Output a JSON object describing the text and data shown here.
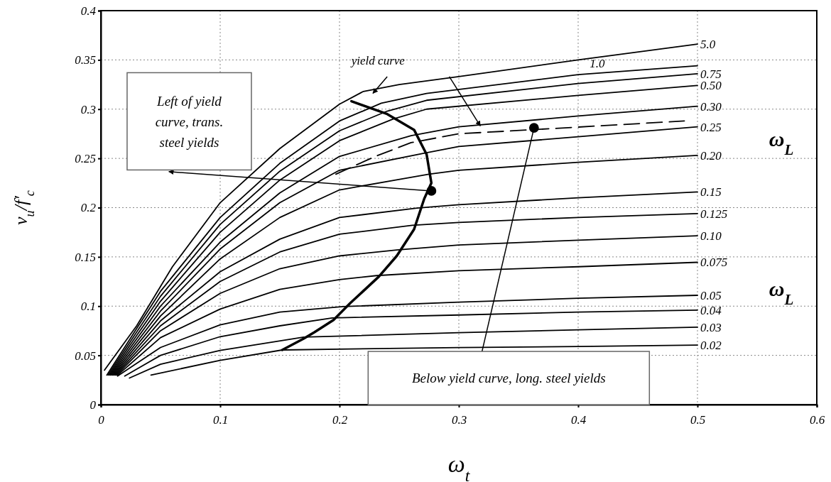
{
  "chart_data": {
    "type": "line",
    "xlabel": "ω$_{t}$",
    "ylabel": "v$_{u}$/f′$_{c}$",
    "xlim": [
      0,
      0.6
    ],
    "xticks": [
      0,
      0.1,
      0.2,
      0.3,
      0.4,
      0.5,
      0.6
    ],
    "ylim": [
      0,
      0.4
    ],
    "yticks": [
      0,
      0.05,
      0.1,
      0.15,
      0.2,
      0.25,
      0.3,
      0.35,
      0.4
    ],
    "grid": true,
    "marker": "none",
    "line_style": "solid",
    "annotations": [
      "yield curve",
      "Left of yield curve, trans. steel yields",
      "Below yield curve, long. steel yields",
      "ω$_{L}$",
      "ω$_{L}$"
    ],
    "series": [
      {
        "name": "5.0",
        "color": "#000000",
        "x": [
          0.003,
          0.03,
          0.06,
          0.1,
          0.15,
          0.2,
          0.22,
          0.25,
          0.3,
          0.4,
          0.5
        ],
        "values": [
          0.035,
          0.08,
          0.14,
          0.205,
          0.26,
          0.305,
          0.318,
          0.325,
          0.333,
          0.35,
          0.366
        ]
      },
      {
        "name": "1.0",
        "color": "#000000",
        "x": [
          0.005,
          0.05,
          0.1,
          0.15,
          0.2,
          0.235,
          0.273,
          0.4,
          0.5
        ],
        "values": [
          0.03,
          0.115,
          0.19,
          0.245,
          0.288,
          0.306,
          0.316,
          0.335,
          0.344
        ]
      },
      {
        "name": "0.75",
        "color": "#000000",
        "x": [
          0.006,
          0.05,
          0.1,
          0.15,
          0.2,
          0.24,
          0.273,
          0.4,
          0.5
        ],
        "values": [
          0.03,
          0.11,
          0.183,
          0.237,
          0.278,
          0.298,
          0.309,
          0.326,
          0.336
        ]
      },
      {
        "name": "0.50",
        "color": "#000000",
        "x": [
          0.007,
          0.05,
          0.1,
          0.15,
          0.2,
          0.245,
          0.273,
          0.4,
          0.5
        ],
        "values": [
          0.03,
          0.105,
          0.175,
          0.228,
          0.268,
          0.29,
          0.3,
          0.314,
          0.324
        ]
      },
      {
        "name": "0.30",
        "color": "#000000",
        "x": [
          0.008,
          0.05,
          0.1,
          0.15,
          0.2,
          0.26,
          0.3,
          0.4,
          0.5
        ],
        "values": [
          0.03,
          0.1,
          0.165,
          0.215,
          0.252,
          0.273,
          0.282,
          0.293,
          0.303
        ]
      },
      {
        "name": "0.25",
        "color": "#000000",
        "x": [
          0.009,
          0.05,
          0.1,
          0.15,
          0.2,
          0.27,
          0.3,
          0.4,
          0.5
        ],
        "values": [
          0.03,
          0.095,
          0.158,
          0.205,
          0.238,
          0.255,
          0.262,
          0.272,
          0.282
        ]
      },
      {
        "name": "0.20",
        "color": "#000000",
        "x": [
          0.01,
          0.05,
          0.1,
          0.15,
          0.2,
          0.275,
          0.3,
          0.4,
          0.5
        ],
        "values": [
          0.03,
          0.09,
          0.148,
          0.19,
          0.218,
          0.234,
          0.238,
          0.246,
          0.253
        ]
      },
      {
        "name": "0.15",
        "color": "#000000",
        "x": [
          0.011,
          0.05,
          0.1,
          0.15,
          0.2,
          0.265,
          0.3,
          0.4,
          0.5
        ],
        "values": [
          0.03,
          0.085,
          0.135,
          0.168,
          0.19,
          0.1995,
          0.203,
          0.21,
          0.216
        ]
      },
      {
        "name": "0.125",
        "color": "#000000",
        "x": [
          0.012,
          0.05,
          0.1,
          0.15,
          0.2,
          0.261,
          0.3,
          0.4,
          0.5
        ],
        "values": [
          0.03,
          0.08,
          0.125,
          0.155,
          0.173,
          0.182,
          0.185,
          0.19,
          0.194
        ]
      },
      {
        "name": "0.10",
        "color": "#000000",
        "x": [
          0.013,
          0.05,
          0.1,
          0.15,
          0.2,
          0.248,
          0.3,
          0.4,
          0.5
        ],
        "values": [
          0.03,
          0.075,
          0.113,
          0.138,
          0.151,
          0.157,
          0.162,
          0.167,
          0.1715
        ]
      },
      {
        "name": "0.075",
        "color": "#000000",
        "x": [
          0.014,
          0.05,
          0.1,
          0.15,
          0.2,
          0.231,
          0.3,
          0.4,
          0.5
        ],
        "values": [
          0.03,
          0.068,
          0.097,
          0.117,
          0.127,
          0.131,
          0.136,
          0.14,
          0.1445
        ]
      },
      {
        "name": "0.05",
        "color": "#000000",
        "x": [
          0.014,
          0.05,
          0.1,
          0.15,
          0.203,
          0.3,
          0.4,
          0.5
        ],
        "values": [
          0.029,
          0.058,
          0.081,
          0.094,
          0.0995,
          0.104,
          0.108,
          0.111
        ]
      },
      {
        "name": "0.04",
        "color": "#000000",
        "x": [
          0.02,
          0.05,
          0.1,
          0.15,
          0.194,
          0.3,
          0.4,
          0.5
        ],
        "values": [
          0.029,
          0.05,
          0.069,
          0.08,
          0.088,
          0.091,
          0.094,
          0.096
        ]
      },
      {
        "name": "0.03",
        "color": "#000000",
        "x": [
          0.024,
          0.05,
          0.1,
          0.17,
          0.3,
          0.4,
          0.5
        ],
        "values": [
          0.027,
          0.041,
          0.055,
          0.0685,
          0.073,
          0.076,
          0.0786
        ]
      },
      {
        "name": "0.02",
        "color": "#000000",
        "x": [
          0.042,
          0.1,
          0.152,
          0.3,
          0.4,
          0.5
        ],
        "values": [
          0.03,
          0.045,
          0.0555,
          0.058,
          0.059,
          0.0605
        ]
      },
      {
        "color": "#000000",
        "line_style": "dashed",
        "x": [
          0.197,
          0.23,
          0.26,
          0.3,
          0.36,
          0.489
        ],
        "values": [
          0.234,
          0.252,
          0.266,
          0.275,
          0.279,
          0.288
        ]
      },
      {
        "color": "#000000",
        "x": [
          0.21,
          0.24,
          0.2625,
          0.273,
          0.277,
          0.271,
          0.2625,
          0.248,
          0.233,
          0.209,
          0.195,
          0.179,
          0.17,
          0.152
        ],
        "values": [
          0.308,
          0.295,
          0.279,
          0.254,
          0.225,
          0.209,
          0.178,
          0.151,
          0.13,
          0.103,
          0.086,
          0.0735,
          0.067,
          0.0555
        ]
      },
      {
        "type": "scatter",
        "marker": "circle",
        "color": "#000000",
        "x": [
          0.277,
          0.363
        ],
        "values": [
          0.217,
          0.281
        ]
      }
    ]
  }
}
